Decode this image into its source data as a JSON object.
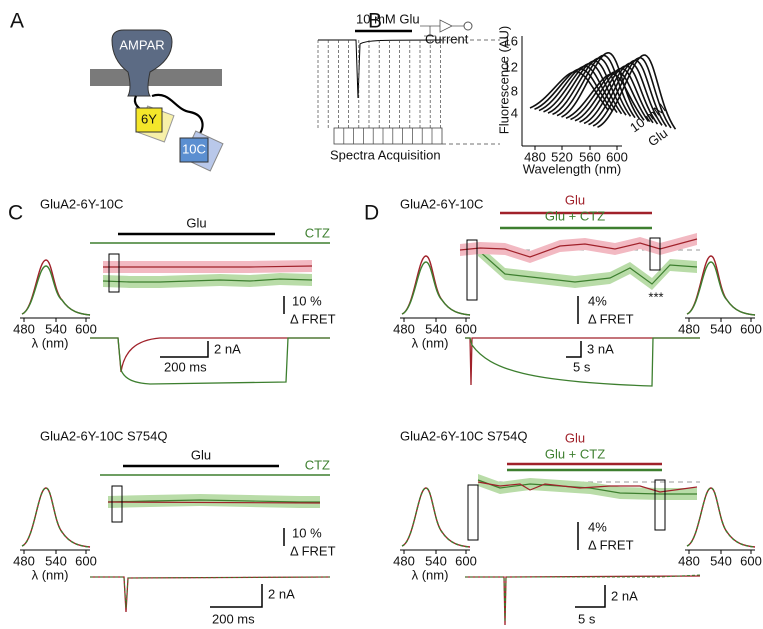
{
  "panels": [
    {
      "label": "A",
      "protein": "AMPAR",
      "donor": "6Y",
      "acceptor": "10C"
    },
    {
      "label": "B",
      "stimulus": "10 mM Glu",
      "recording": "Current",
      "acquisition": "Spectra Acquisition",
      "plot": {
        "y_label": "Fluorescence (AU)",
        "y_ticks": [
          "16",
          "12",
          "8",
          "4"
        ],
        "x_ticks": [
          "480",
          "520",
          "560",
          "600"
        ],
        "x_label": "Wavelength (nm)",
        "z_label_1": "10 mM",
        "z_label_2": "Glu"
      }
    },
    {
      "label": "C",
      "rows": [
        {
          "construct": "GluA2-6Y-10C",
          "drug_1": "Glu",
          "drug_2": "CTZ",
          "spectrum": {
            "x_ticks": [
              "480",
              "540",
              "600"
            ],
            "x_label": "λ (nm)"
          },
          "fret_scale": "10 %",
          "fret_label": "Δ FRET",
          "current_scale": "2 nA",
          "time_scale": "200 ms"
        },
        {
          "construct": "GluA2-6Y-10C S754Q",
          "drug_1": "Glu",
          "drug_2": "CTZ",
          "spectrum": {
            "x_ticks": [
              "480",
              "540",
              "600"
            ],
            "x_label": "λ (nm)"
          },
          "fret_scale": "10 %",
          "fret_label": "Δ FRET",
          "current_scale": "2 nA",
          "time_scale": "200 ms"
        }
      ]
    },
    {
      "label": "D",
      "rows": [
        {
          "construct": "GluA2-6Y-10C",
          "drug_1": "Glu",
          "drug_2": "Glu + CTZ",
          "spectrum_left": {
            "x_ticks": [
              "480",
              "540",
              "600"
            ],
            "x_label": "λ (nm)"
          },
          "spectrum_right": {
            "x_ticks": [
              "480",
              "540",
              "600"
            ]
          },
          "fret_scale": "4%",
          "fret_label": "Δ FRET",
          "significance": "***",
          "current_scale": "3 nA",
          "time_scale": "5 s"
        },
        {
          "construct": "GluA2-6Y-10C S754Q",
          "drug_1": "Glu",
          "drug_2": "Glu + CTZ",
          "spectrum_left": {
            "x_ticks": [
              "480",
              "540",
              "600"
            ],
            "x_label": "λ (nm)"
          },
          "spectrum_right": {
            "x_ticks": [
              "480",
              "540",
              "600"
            ]
          },
          "fret_scale": "4%",
          "fret_label": "Δ FRET",
          "current_scale": "2 nA",
          "time_scale": "5 s"
        }
      ]
    }
  ]
}
